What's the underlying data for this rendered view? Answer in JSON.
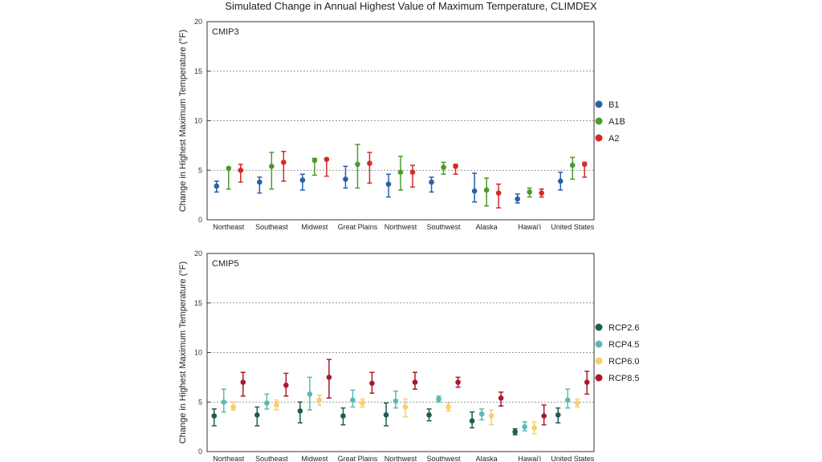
{
  "title": "Simulated Change in Annual Highest Value of Maximum Temperature, CLIMDEX",
  "chart_data": [
    {
      "type": "scatter",
      "panel_label": "CMIP3",
      "ylabel": "Change in Highest Maximum Temperature (°F)",
      "ylim": [
        0,
        20
      ],
      "yticks": [
        0,
        5,
        10,
        15,
        20
      ],
      "grid": "dotted horizontal at 5, 10, 15",
      "legend_position": "right",
      "categories": [
        "Northeast",
        "Southeast",
        "Midwest",
        "Great Plains",
        "Northwest",
        "Southwest",
        "Alaska",
        "Hawai'i",
        "United States"
      ],
      "series": [
        {
          "name": "B1",
          "color": "#2960a8",
          "values": [
            3.4,
            3.8,
            4.0,
            4.1,
            3.6,
            3.8,
            2.9,
            2.1,
            3.9
          ],
          "low": [
            2.8,
            2.7,
            3.0,
            3.2,
            2.3,
            2.8,
            1.8,
            1.7,
            3.0
          ],
          "high": [
            3.9,
            4.3,
            4.6,
            5.4,
            4.6,
            4.3,
            4.7,
            2.6,
            4.8
          ]
        },
        {
          "name": "A1B",
          "color": "#4c9a2a",
          "values": [
            5.2,
            5.4,
            6.0,
            5.6,
            4.8,
            5.3,
            3.0,
            2.8,
            5.5
          ],
          "low": [
            3.1,
            3.1,
            4.5,
            3.2,
            3.0,
            4.6,
            1.4,
            2.3,
            4.1
          ],
          "high": [
            5.3,
            6.8,
            6.2,
            7.6,
            6.4,
            5.8,
            4.2,
            3.2,
            6.3
          ]
        },
        {
          "name": "A2",
          "color": "#d42a2a",
          "values": [
            5.0,
            5.8,
            6.1,
            5.7,
            4.8,
            5.4,
            2.7,
            2.7,
            5.6
          ],
          "low": [
            3.8,
            3.9,
            4.4,
            3.7,
            3.3,
            4.6,
            1.2,
            2.3,
            4.3
          ],
          "high": [
            5.6,
            6.9,
            6.2,
            6.8,
            5.5,
            5.6,
            3.6,
            3.1,
            5.8
          ]
        }
      ]
    },
    {
      "type": "scatter",
      "panel_label": "CMIP5",
      "ylabel": "Change in Highest Maximum Temperature (°F)",
      "ylim": [
        0,
        20
      ],
      "yticks": [
        0,
        5,
        10,
        15,
        20
      ],
      "grid": "dotted horizontal at 5, 10, 15",
      "legend_position": "right",
      "categories": [
        "Northeast",
        "Southeast",
        "Midwest",
        "Great Plains",
        "Northwest",
        "Southwest",
        "Alaska",
        "Hawai'i",
        "United States"
      ],
      "series": [
        {
          "name": "RCP2.6",
          "color": "#1b5e4f",
          "values": [
            3.6,
            3.7,
            4.1,
            3.6,
            3.7,
            3.7,
            3.1,
            2.0,
            3.7
          ],
          "low": [
            2.6,
            2.6,
            2.9,
            2.7,
            2.6,
            3.1,
            2.4,
            1.7,
            2.9
          ],
          "high": [
            4.3,
            4.5,
            5.0,
            4.4,
            4.9,
            4.3,
            4.0,
            2.3,
            4.4
          ]
        },
        {
          "name": "RCP4.5",
          "color": "#5bbab4",
          "values": [
            5.0,
            4.9,
            5.8,
            5.2,
            5.1,
            5.3,
            3.8,
            2.5,
            5.2
          ],
          "low": [
            4.0,
            4.3,
            4.2,
            4.5,
            4.4,
            5.0,
            3.2,
            2.1,
            4.4
          ],
          "high": [
            6.3,
            5.8,
            7.5,
            6.2,
            6.1,
            5.6,
            4.3,
            3.0,
            6.3
          ]
        },
        {
          "name": "RCP6.0",
          "color": "#f7cf6b",
          "values": [
            4.5,
            4.7,
            5.2,
            4.9,
            4.5,
            4.5,
            3.6,
            2.4,
            4.9
          ],
          "low": [
            4.2,
            4.2,
            4.7,
            4.5,
            3.5,
            4.1,
            2.7,
            1.8,
            4.5
          ],
          "high": [
            5.0,
            5.2,
            5.7,
            5.3,
            5.3,
            4.9,
            4.2,
            3.0,
            5.3
          ]
        },
        {
          "name": "RCP8.5",
          "color": "#a81a2a",
          "values": [
            7.0,
            6.7,
            7.5,
            6.9,
            7.0,
            7.0,
            5.4,
            3.6,
            7.0
          ],
          "low": [
            5.6,
            5.6,
            5.4,
            5.9,
            6.3,
            6.5,
            4.6,
            2.7,
            5.8
          ],
          "high": [
            8.0,
            7.9,
            9.3,
            8.0,
            8.0,
            7.5,
            6.0,
            4.7,
            8.1
          ]
        }
      ]
    }
  ]
}
